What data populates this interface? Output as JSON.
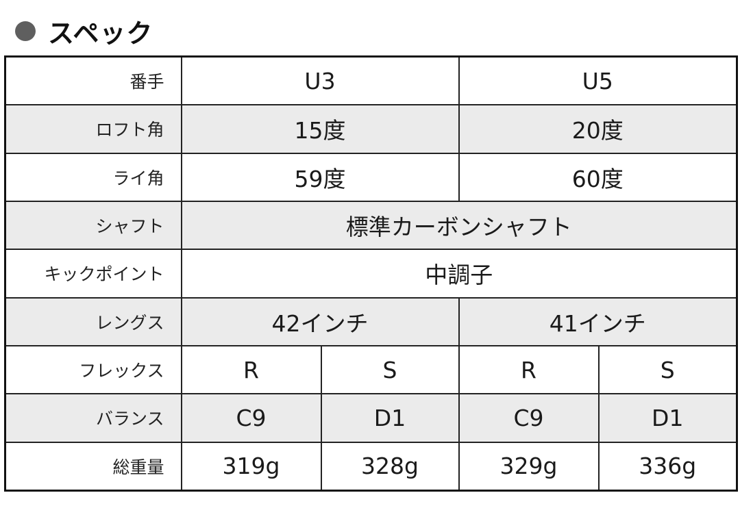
{
  "title": "スペック",
  "rows": [
    {
      "label": "番手",
      "cells": [
        "U3",
        "U5"
      ]
    },
    {
      "label": "ロフト角",
      "cells": [
        "15度",
        "20度"
      ]
    },
    {
      "label": "ライ角",
      "cells": [
        "59度",
        "60度"
      ]
    },
    {
      "label": "シャフト",
      "cells": [
        "標準カーボンシャフト"
      ]
    },
    {
      "label": "キックポイント",
      "cells": [
        "中調子"
      ]
    },
    {
      "label": "レングス",
      "cells": [
        "42インチ",
        "41インチ"
      ]
    },
    {
      "label": "フレックス",
      "cells": [
        "R",
        "S",
        "R",
        "S"
      ]
    },
    {
      "label": "バランス",
      "cells": [
        "C9",
        "D1",
        "C9",
        "D1"
      ]
    },
    {
      "label": "総重量",
      "cells": [
        "319g",
        "328g",
        "329g",
        "336g"
      ]
    }
  ]
}
